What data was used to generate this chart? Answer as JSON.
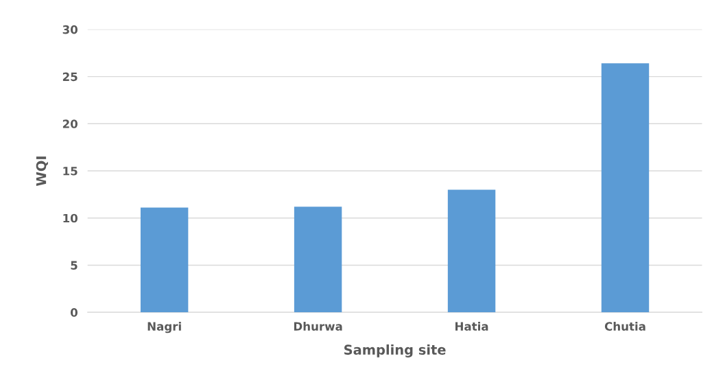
{
  "chart_data": {
    "type": "bar",
    "xlabel": "Sampling site",
    "ylabel": "WQI",
    "categories": [
      "Nagri",
      "Dhurwa",
      "Hatia",
      "Chutia"
    ],
    "values": [
      11.1,
      11.2,
      13.0,
      26.4
    ],
    "color": "#5b9bd5",
    "ylim": [
      0,
      30
    ],
    "yticks": [
      0,
      5,
      10,
      15,
      20,
      25,
      30
    ],
    "grid": "y",
    "legend": false
  }
}
